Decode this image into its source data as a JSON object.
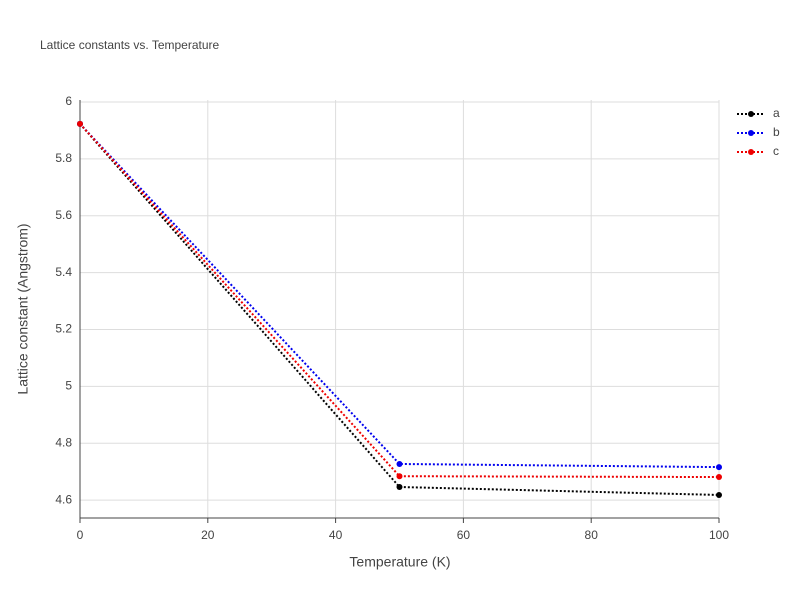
{
  "chart_data": {
    "type": "line",
    "title": "Lattice constants vs. Temperature",
    "x_label": "Temperature (K)",
    "y_label": "Lattice constant (Angstrom)",
    "x": [
      0,
      50,
      100
    ],
    "series": [
      {
        "name": "a",
        "color": "#000000",
        "values": [
          5.923,
          4.646,
          4.618
        ]
      },
      {
        "name": "b",
        "color": "#0000ee",
        "values": [
          5.923,
          4.727,
          4.716
        ]
      },
      {
        "name": "c",
        "color": "#ee0000",
        "values": [
          5.923,
          4.684,
          4.681
        ]
      }
    ],
    "xlim": [
      0,
      100
    ],
    "xticks": [
      0,
      20,
      40,
      60,
      80,
      100
    ],
    "ylim": [
      4.537,
      6.007
    ],
    "yticks": [
      4.6,
      4.8,
      5,
      5.2,
      5.4,
      5.6,
      5.8,
      6
    ],
    "grid": true,
    "legend": "top-right"
  }
}
